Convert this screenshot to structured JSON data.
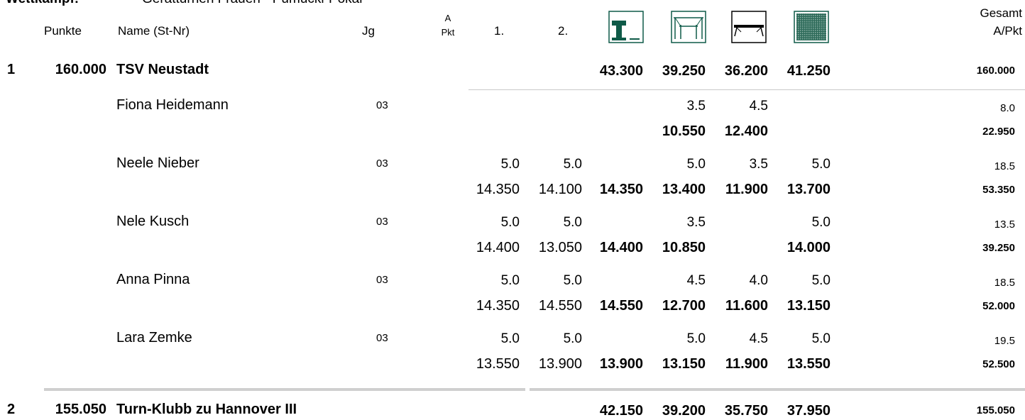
{
  "title": {
    "label": "Wettkampf:",
    "text": "Gerätturnen Frauen - Pumucki-Pokal"
  },
  "header": {
    "punkte": "Punkte",
    "name": "Name (St-Nr)",
    "jg": "Jg",
    "a_top": "A",
    "a_bottom": "Pkt",
    "v1": "1.",
    "v2": "2.",
    "gesamt_top": "Gesamt",
    "gesamt_bottom": "A/Pkt",
    "apparatus_icons": [
      "vault-icon",
      "uneven-bars-icon",
      "balance-beam-icon",
      "floor-icon"
    ],
    "icon_color": "#0f5a48"
  },
  "teams": [
    {
      "rank": "1",
      "points": "160.000",
      "name": "TSV  Neustadt",
      "scores": [
        "43.300",
        "39.250",
        "36.200",
        "41.250"
      ],
      "total": "160.000"
    },
    {
      "rank": "2",
      "points": "155.050",
      "name": "Turn-Klubb zu Hannover III",
      "scores": [
        "42.150",
        "39.200",
        "35.750",
        "37.950"
      ],
      "total": "155.050"
    }
  ],
  "athletes": [
    {
      "name": "Fiona Heidemann",
      "jg": "03",
      "a": [
        "",
        "",
        "",
        "3.5",
        "4.5",
        ""
      ],
      "a_total": "8.0",
      "s": [
        "",
        "",
        "",
        "10.550",
        "12.400",
        ""
      ],
      "s_total": "22.950"
    },
    {
      "name": "Neele Nieber",
      "jg": "03",
      "a": [
        "5.0",
        "5.0",
        "",
        "5.0",
        "3.5",
        "5.0"
      ],
      "a_total": "18.5",
      "s": [
        "14.350",
        "14.100",
        "14.350",
        "13.400",
        "11.900",
        "13.700"
      ],
      "s_total": "53.350"
    },
    {
      "name": "Nele Kusch",
      "jg": "03",
      "a": [
        "5.0",
        "5.0",
        "",
        "3.5",
        "",
        "5.0"
      ],
      "a_total": "13.5",
      "s": [
        "14.400",
        "13.050",
        "14.400",
        "10.850",
        "",
        "14.000"
      ],
      "s_total": "39.250"
    },
    {
      "name": "Anna Pinna",
      "jg": "03",
      "a": [
        "5.0",
        "5.0",
        "",
        "4.5",
        "4.0",
        "5.0"
      ],
      "a_total": "18.5",
      "s": [
        "14.350",
        "14.550",
        "14.550",
        "12.700",
        "11.600",
        "13.150"
      ],
      "s_total": "52.000"
    },
    {
      "name": "Lara Zemke",
      "jg": "03",
      "a": [
        "5.0",
        "5.0",
        "",
        "5.0",
        "4.5",
        "5.0"
      ],
      "a_total": "19.5",
      "s": [
        "13.550",
        "13.900",
        "13.900",
        "13.150",
        "11.900",
        "13.550"
      ],
      "s_total": "52.500"
    }
  ]
}
